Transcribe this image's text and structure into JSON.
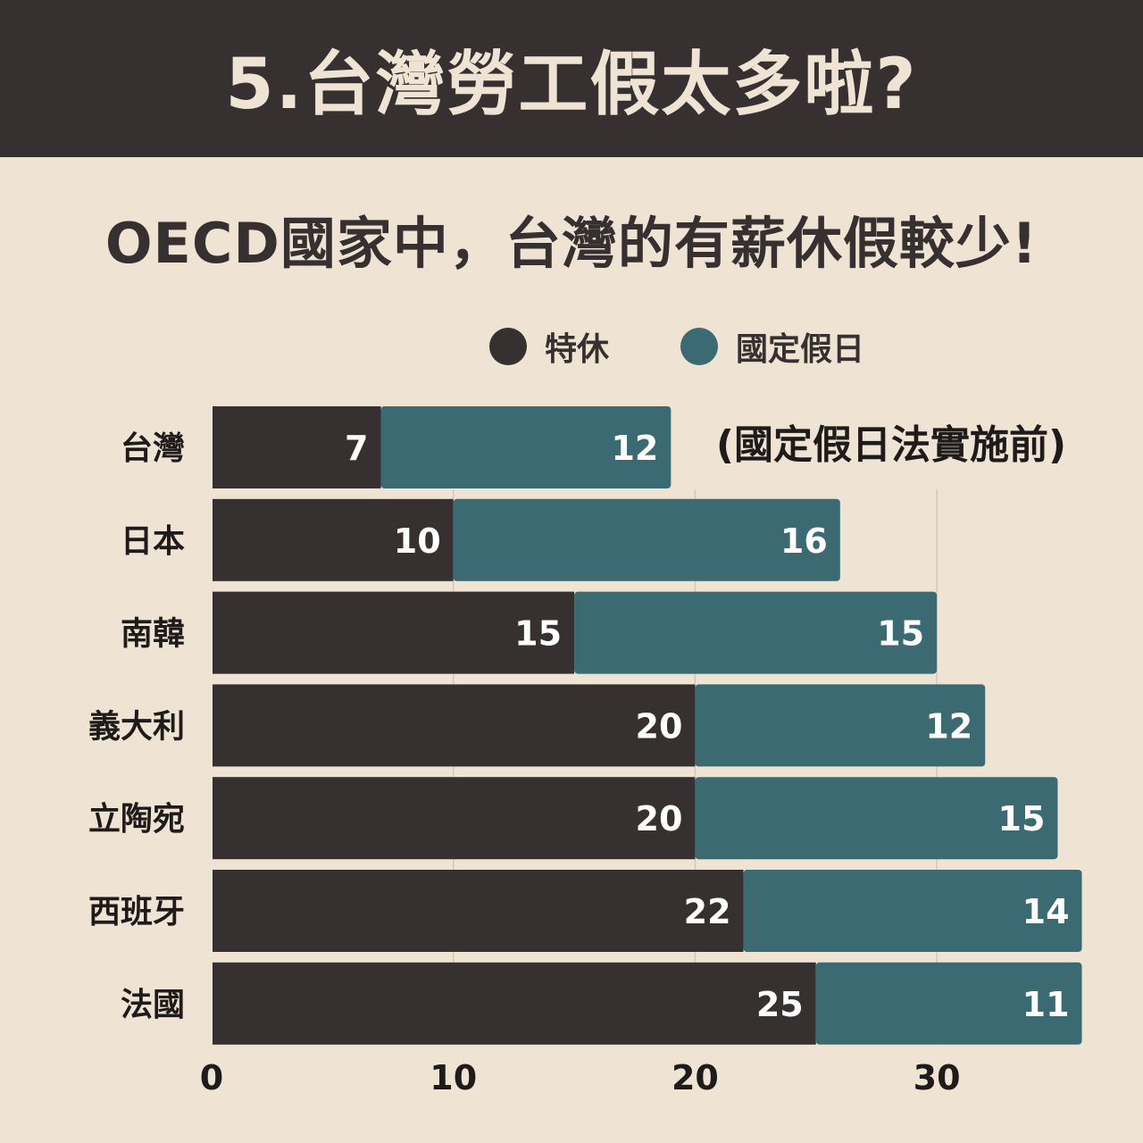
{
  "header": {
    "title": "5.台灣勞工假太多啦?"
  },
  "subtitle": "OECD國家中，台灣的有薪休假較少!",
  "colors": {
    "header_bg": "#363130",
    "background": "#efe4d4",
    "annual_leave": "#363130",
    "public_holiday": "#3b6a72"
  },
  "chart_data": {
    "type": "bar",
    "orientation": "horizontal",
    "stacked": true,
    "title": "OECD國家中，台灣的有薪休假較少!",
    "categories": [
      "台灣",
      "日本",
      "南韓",
      "義大利",
      "立陶宛",
      "西班牙",
      "法國"
    ],
    "series": [
      {
        "name": "特休",
        "color": "#363130",
        "values": [
          7,
          10,
          15,
          20,
          20,
          22,
          25
        ]
      },
      {
        "name": "國定假日",
        "color": "#3b6a72",
        "values": [
          12,
          16,
          15,
          12,
          15,
          14,
          11
        ]
      }
    ],
    "xlim": [
      0,
      36
    ],
    "xticks": [
      0,
      10,
      20,
      30
    ],
    "grid": true,
    "legend_placement": "top",
    "annotation": "(國定假日法實施前)",
    "xlabel": "",
    "ylabel": ""
  }
}
